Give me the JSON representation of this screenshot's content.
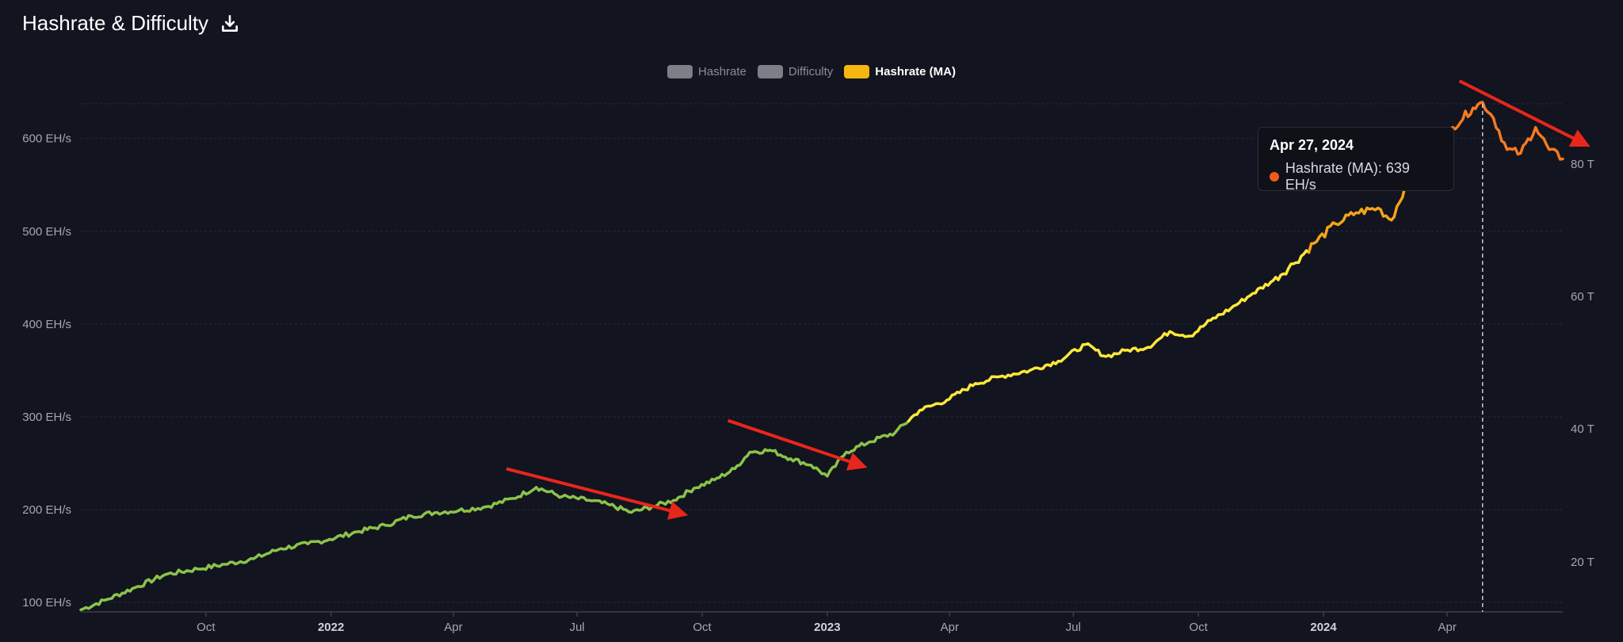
{
  "header": {
    "title": "Hashrate & Difficulty",
    "download_icon": "download-icon"
  },
  "legend": [
    {
      "label": "Hashrate",
      "color": "#7d7f88",
      "active": false
    },
    {
      "label": "Difficulty",
      "color": "#7d7f88",
      "active": false
    },
    {
      "label": "Hashrate (MA)",
      "color": "#f5b60f",
      "active": true
    }
  ],
  "tooltip": {
    "date": "Apr 27, 2024",
    "series_label": "Hashrate (MA): 639 EH/s",
    "dot_color": "#f05a1e"
  },
  "colors": {
    "background": "#12141f",
    "grid": "#262a38",
    "line_green": "#8bc34a",
    "line_yellow": "#fde73a",
    "line_orange": "#f5a418",
    "line_red_orange": "#f57a20",
    "arrow": "#e8261c"
  },
  "chart_data": {
    "type": "line",
    "title": "Hashrate & Difficulty",
    "x_tick_labels": [
      "Oct",
      "2022",
      "Apr",
      "Jul",
      "Oct",
      "2023",
      "Apr",
      "Jul",
      "Oct",
      "2024",
      "Apr"
    ],
    "y_left_ticks": [
      "100 EH/s",
      "200 EH/s",
      "300 EH/s",
      "400 EH/s",
      "500 EH/s",
      "600 EH/s"
    ],
    "y_right_ticks": [
      "20 T",
      "40 T",
      "60 T",
      "80 T"
    ],
    "y_left_range": [
      95,
      650
    ],
    "x_range": [
      "2021-07-01",
      "2024-06-25"
    ],
    "hover_date": "2024-04-27",
    "series": [
      {
        "name": "Hashrate (MA)",
        "unit": "EH/s",
        "points": [
          [
            "2021-07-01",
            92
          ],
          [
            "2021-07-20",
            103
          ],
          [
            "2021-08-10",
            116
          ],
          [
            "2021-09-01",
            130
          ],
          [
            "2021-09-25",
            136
          ],
          [
            "2021-10-15",
            141
          ],
          [
            "2021-11-05",
            147
          ],
          [
            "2021-11-25",
            158
          ],
          [
            "2021-12-15",
            163
          ],
          [
            "2021-12-31",
            168
          ],
          [
            "2022-01-20",
            176
          ],
          [
            "2022-02-10",
            183
          ],
          [
            "2022-03-01",
            193
          ],
          [
            "2022-03-20",
            197
          ],
          [
            "2022-04-05",
            199
          ],
          [
            "2022-04-25",
            203
          ],
          [
            "2022-05-15",
            212
          ],
          [
            "2022-06-01",
            224
          ],
          [
            "2022-06-20",
            214
          ],
          [
            "2022-07-10",
            210
          ],
          [
            "2022-07-25",
            205
          ],
          [
            "2022-08-10",
            197
          ],
          [
            "2022-08-25",
            203
          ],
          [
            "2022-09-10",
            210
          ],
          [
            "2022-09-25",
            223
          ],
          [
            "2022-10-10",
            232
          ],
          [
            "2022-10-25",
            244
          ],
          [
            "2022-11-05",
            262
          ],
          [
            "2022-11-20",
            264
          ],
          [
            "2022-12-05",
            255
          ],
          [
            "2022-12-20",
            248
          ],
          [
            "2023-01-01",
            236
          ],
          [
            "2023-01-15",
            262
          ],
          [
            "2023-02-01",
            273
          ],
          [
            "2023-02-20",
            283
          ],
          [
            "2023-03-10",
            307
          ],
          [
            "2023-03-30",
            318
          ],
          [
            "2023-04-20",
            336
          ],
          [
            "2023-05-10",
            344
          ],
          [
            "2023-05-30",
            350
          ],
          [
            "2023-06-20",
            360
          ],
          [
            "2023-07-10",
            378
          ],
          [
            "2023-07-25",
            365
          ],
          [
            "2023-08-10",
            372
          ],
          [
            "2023-08-25",
            375
          ],
          [
            "2023-09-10",
            392
          ],
          [
            "2023-09-25",
            387
          ],
          [
            "2023-10-10",
            404
          ],
          [
            "2023-10-25",
            417
          ],
          [
            "2023-11-10",
            433
          ],
          [
            "2023-11-25",
            447
          ],
          [
            "2023-12-10",
            465
          ],
          [
            "2023-12-25",
            487
          ],
          [
            "2024-01-10",
            508
          ],
          [
            "2024-01-25",
            520
          ],
          [
            "2024-02-10",
            525
          ],
          [
            "2024-02-20",
            512
          ],
          [
            "2024-03-01",
            548
          ],
          [
            "2024-03-20",
            585
          ],
          [
            "2024-04-05",
            612
          ],
          [
            "2024-04-20",
            633
          ],
          [
            "2024-04-27",
            639
          ],
          [
            "2024-05-05",
            622
          ],
          [
            "2024-05-15",
            588
          ],
          [
            "2024-05-25",
            584
          ],
          [
            "2024-06-05",
            612
          ],
          [
            "2024-06-15",
            588
          ],
          [
            "2024-06-25",
            578
          ]
        ]
      }
    ],
    "annotations": [
      {
        "type": "arrow",
        "from": [
          "2022-05-10",
          244
        ],
        "to": [
          "2022-09-15",
          196
        ]
      },
      {
        "type": "arrow",
        "from": [
          "2022-10-20",
          296
        ],
        "to": [
          "2023-01-25",
          248
        ]
      },
      {
        "type": "arrow",
        "from": [
          "2024-04-10",
          662
        ],
        "to": [
          "2024-07-10",
          595
        ]
      }
    ],
    "grid": true,
    "legend_position": "top-center"
  }
}
